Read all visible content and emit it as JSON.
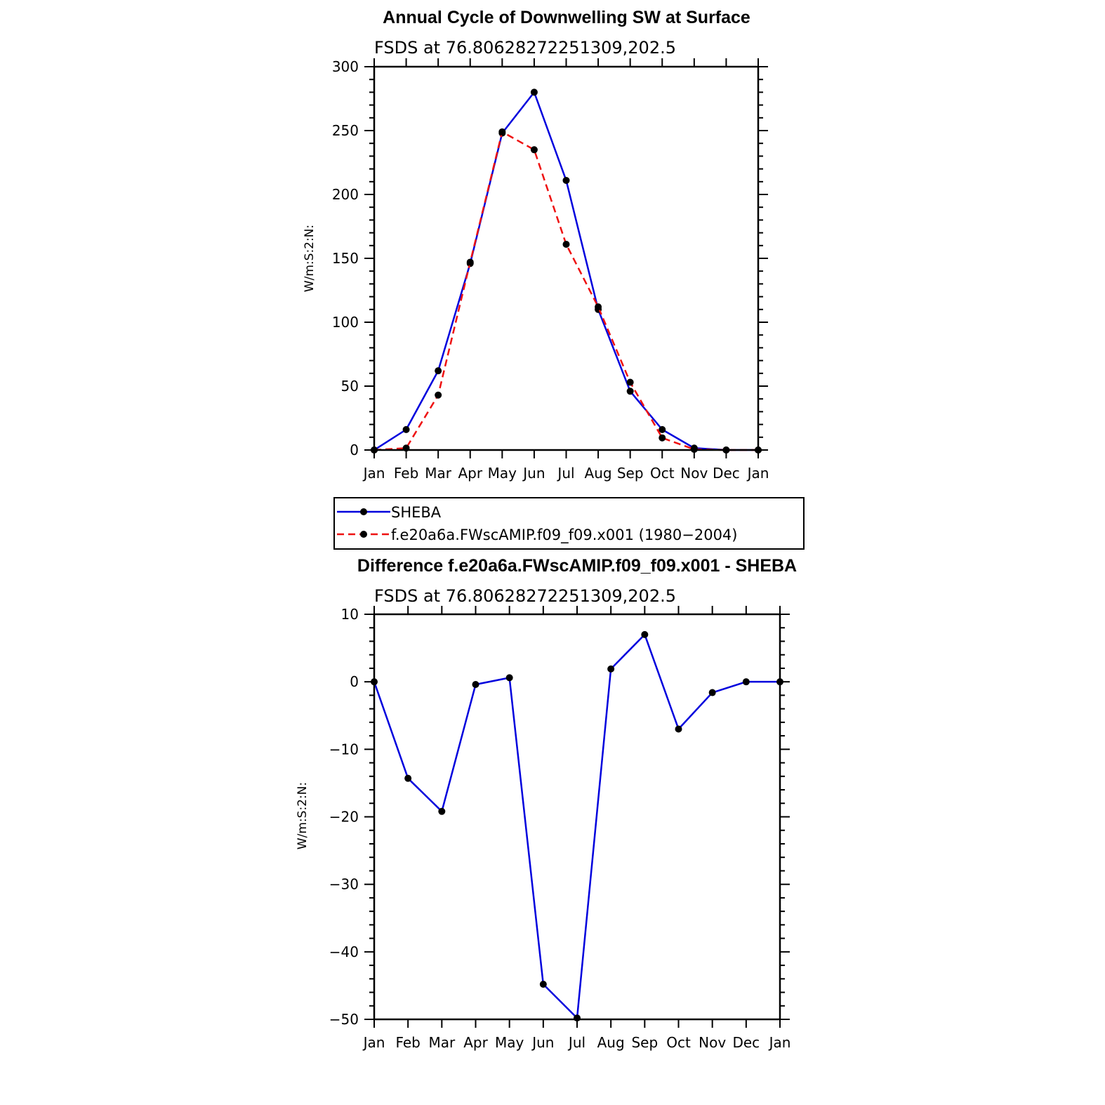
{
  "chart_data": [
    {
      "type": "line",
      "title": "Annual Cycle of Downwelling SW at Surface",
      "subtitle": "FSDS at 76.80628272251309,202.5",
      "ylabel": "W/m:S:2:N:",
      "xlabel": "",
      "categories": [
        "Jan",
        "Feb",
        "Mar",
        "Apr",
        "May",
        "Jun",
        "Jul",
        "Aug",
        "Sep",
        "Oct",
        "Nov",
        "Dec",
        "Jan"
      ],
      "ylim": [
        0,
        300
      ],
      "yticks": [
        0,
        50,
        100,
        150,
        200,
        250,
        300
      ],
      "grid": false,
      "legend_placement": "below",
      "series": [
        {
          "name": "SHEBA",
          "color": "#0000dd",
          "style": "solid",
          "values": [
            0,
            16,
            62,
            146,
            248,
            280,
            211,
            110,
            46,
            16,
            1.5,
            0,
            0
          ]
        },
        {
          "name": "f.e20a6a.FWscAMIP.f09_f09.x001 (1980−2004)",
          "color": "#ee1111",
          "style": "dashed",
          "values": [
            0,
            1.5,
            43,
            147,
            249,
            235,
            161,
            112,
            53,
            9.5,
            0.5,
            0,
            0
          ]
        }
      ]
    },
    {
      "type": "line",
      "title": "Difference f.e20a6a.FWscAMIP.f09_f09.x001 - SHEBA",
      "subtitle": "FSDS at 76.80628272251309,202.5",
      "ylabel": "W/m:S:2:N:",
      "xlabel": "",
      "categories": [
        "Jan",
        "Feb",
        "Mar",
        "Apr",
        "May",
        "Jun",
        "Jul",
        "Aug",
        "Sep",
        "Oct",
        "Nov",
        "Dec",
        "Jan"
      ],
      "ylim": [
        -50,
        10
      ],
      "yticks": [
        -50,
        -40,
        -30,
        -20,
        -10,
        0,
        10
      ],
      "ytick_labels": [
        "−50",
        "−40",
        "−30",
        "−20",
        "−10",
        "0",
        "10"
      ],
      "grid": false,
      "series": [
        {
          "color": "#0000dd",
          "style": "solid",
          "values": [
            0,
            -14.3,
            -19.2,
            -0.4,
            0.6,
            -44.8,
            -49.8,
            1.9,
            7.0,
            -7.0,
            -1.6,
            0,
            0
          ]
        }
      ]
    }
  ]
}
